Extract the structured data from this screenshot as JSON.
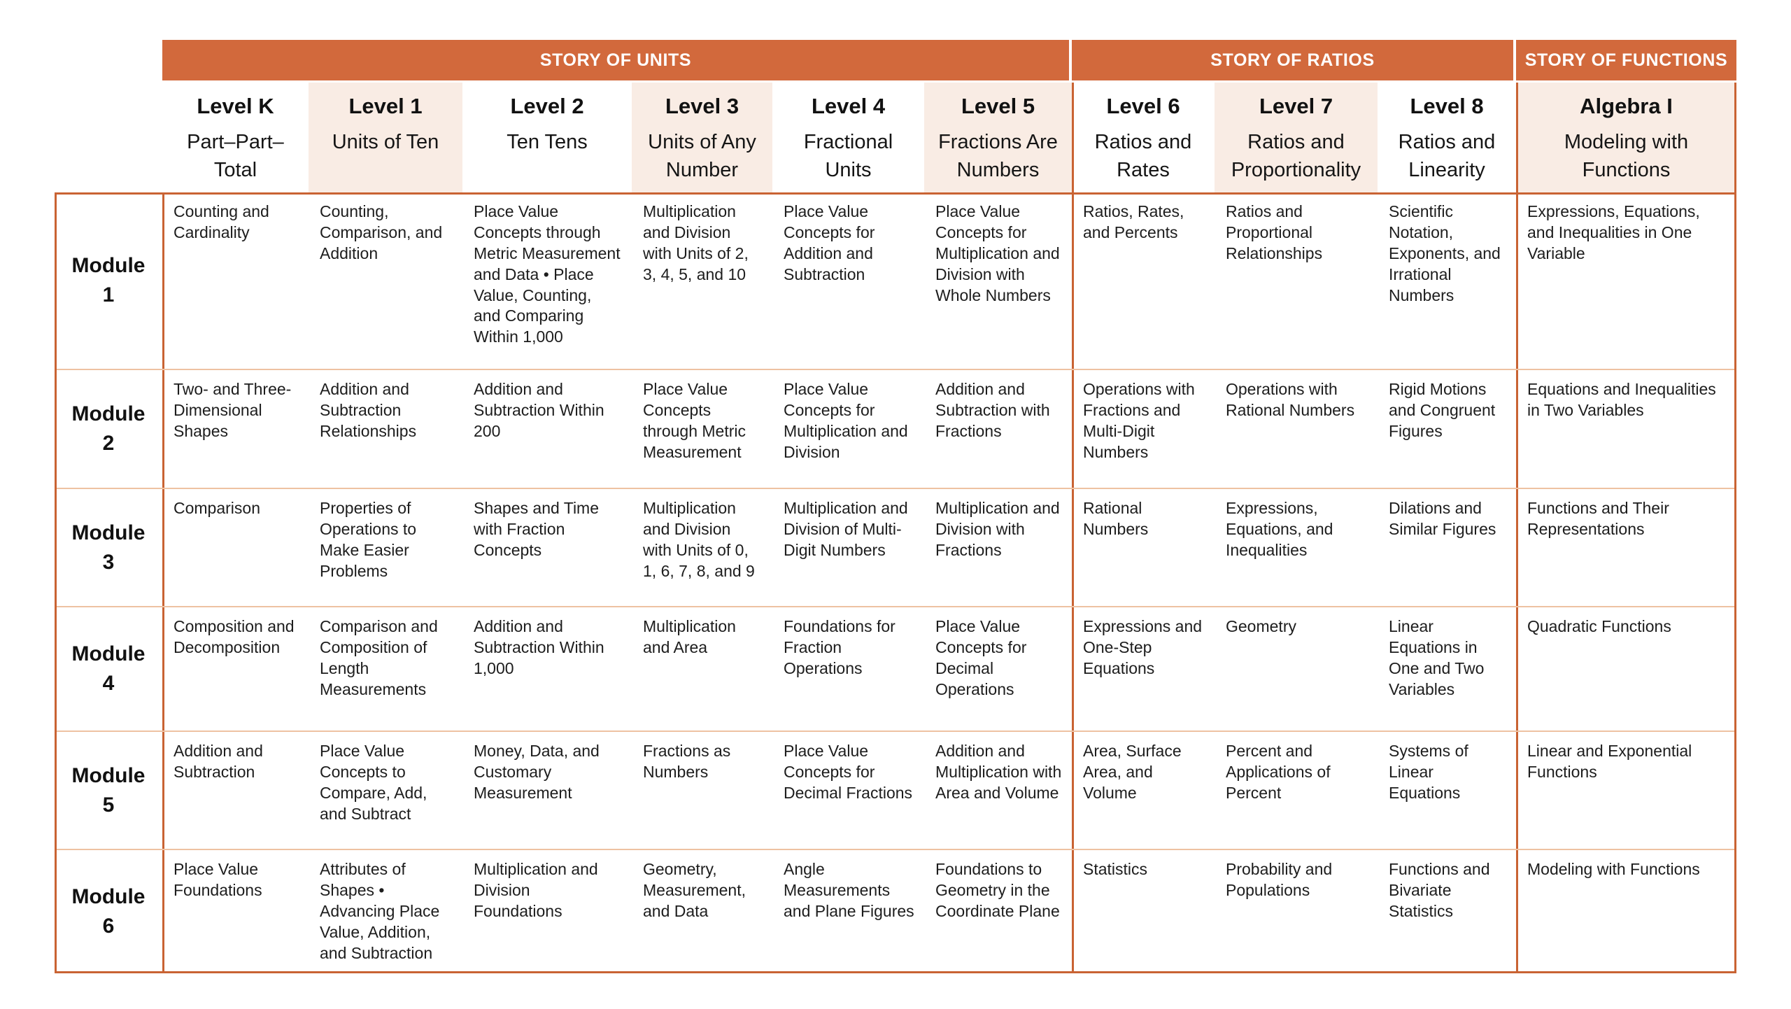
{
  "colors": {
    "band_bg": "#d2693c",
    "band_text": "#ffffff",
    "peach": "#f9ece4",
    "border_strong": "#c96333",
    "row_divider": "#eec2a2",
    "text": "#1d1d1d"
  },
  "table": {
    "sections": [
      {
        "label": "STORY OF UNITS",
        "columns": 6
      },
      {
        "label": "STORY OF RATIOS",
        "columns": 3
      },
      {
        "label": "STORY OF FUNCTIONS",
        "columns": 1
      }
    ],
    "columns": [
      {
        "level": "Level K",
        "subtitle": "Part–Part–Total"
      },
      {
        "level": "Level 1",
        "subtitle": "Units of Ten"
      },
      {
        "level": "Level 2",
        "subtitle": "Ten Tens"
      },
      {
        "level": "Level 3",
        "subtitle": "Units of Any Number"
      },
      {
        "level": "Level 4",
        "subtitle": "Fractional Units"
      },
      {
        "level": "Level 5",
        "subtitle": "Fractions Are Numbers"
      },
      {
        "level": "Level 6",
        "subtitle": "Ratios and Rates"
      },
      {
        "level": "Level 7",
        "subtitle": "Ratios and Proportionality"
      },
      {
        "level": "Level 8",
        "subtitle": "Ratios and Linearity"
      },
      {
        "level": "Algebra I",
        "subtitle": "Modeling with Functions"
      }
    ],
    "rows": [
      {
        "module_word": "Module",
        "module_number": "1",
        "cells": [
          "Counting and Cardinality",
          "Counting, Comparison, and Addition",
          "Place Value Concepts through Metric Measurement and Data • Place Value, Counting, and Comparing Within 1,000",
          "Multiplication and Division with Units of 2, 3, 4, 5, and 10",
          "Place Value Concepts for Addition and Subtraction",
          "Place Value Concepts for Multiplication and Division with Whole Numbers",
          "Ratios, Rates, and Percents",
          "Ratios and Proportional Relationships",
          "Scientific Notation, Exponents, and Irrational Numbers",
          "Expressions, Equations, and Inequalities in One Variable"
        ]
      },
      {
        "module_word": "Module",
        "module_number": "2",
        "cells": [
          "Two- and Three-Dimensional Shapes",
          "Addition and Subtraction Relationships",
          "Addition and Subtraction Within 200",
          "Place Value Concepts through Metric Measurement",
          "Place Value Concepts for Multiplication and Division",
          "Addition and Subtraction with Fractions",
          "Operations with Fractions and Multi-Digit Numbers",
          "Operations with Rational Numbers",
          "Rigid Motions and Congruent Figures",
          "Equations and Inequalities in Two Variables"
        ]
      },
      {
        "module_word": "Module",
        "module_number": "3",
        "cells": [
          "Comparison",
          "Properties of Operations to Make Easier Problems",
          "Shapes and Time with Fraction Concepts",
          "Multiplication and Division with Units of 0, 1, 6, 7, 8, and 9",
          "Multiplication and Division of Multi-Digit Numbers",
          "Multiplication and Division with Fractions",
          "Rational Numbers",
          "Expressions, Equations, and Inequalities",
          "Dilations and Similar Figures",
          "Functions and Their Representations"
        ]
      },
      {
        "module_word": "Module",
        "module_number": "4",
        "cells": [
          "Composition and Decomposition",
          "Comparison and Composition of Length Measurements",
          "Addition and Subtraction Within 1,000",
          "Multiplication and Area",
          "Foundations for Fraction Operations",
          "Place Value Concepts for Decimal Operations",
          "Expressions and One-Step Equations",
          "Geometry",
          "Linear Equations in One and Two Variables",
          "Quadratic Functions"
        ]
      },
      {
        "module_word": "Module",
        "module_number": "5",
        "cells": [
          "Addition and Subtraction",
          "Place Value Concepts to Compare, Add, and Subtract",
          "Money, Data, and Customary Measurement",
          "Fractions as Numbers",
          "Place Value Concepts for Decimal Fractions",
          "Addition and Multiplication with Area and Volume",
          "Area, Surface Area, and Volume",
          "Percent and Applications of Percent",
          "Systems of Linear Equations",
          "Linear and Exponential Functions"
        ]
      },
      {
        "module_word": "Module",
        "module_number": "6",
        "cells": [
          "Place Value Foundations",
          "Attributes of Shapes • Advancing Place Value, Addition, and Subtraction",
          "Multiplication and Division Foundations",
          "Geometry, Measurement, and Data",
          "Angle Measurements and Plane Figures",
          "Foundations to Geometry in the Coordinate Plane",
          "Statistics",
          "Probability and Populations",
          "Functions and Bivariate Statistics",
          "Modeling with Functions"
        ]
      }
    ]
  }
}
